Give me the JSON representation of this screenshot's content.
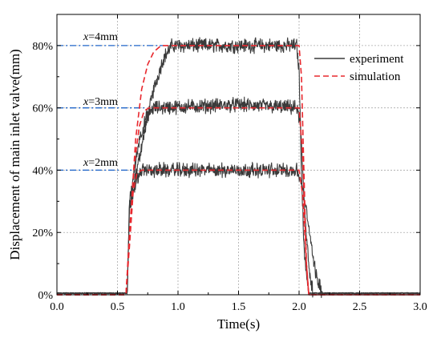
{
  "chart_data": {
    "type": "line",
    "title": "",
    "xlabel": "Time(s)",
    "ylabel": "Displacement of main inlet valve(mm)",
    "xlim": [
      0.0,
      3.0
    ],
    "ylim": [
      0,
      90
    ],
    "x_ticks": [
      0.0,
      0.5,
      1.0,
      1.5,
      2.0,
      2.5,
      3.0
    ],
    "x_tick_labels": [
      "0.0",
      "0.5",
      "1.0",
      "1.5",
      "2.0",
      "2.5",
      "3.0"
    ],
    "y_ticks": [
      0,
      20,
      40,
      60,
      80
    ],
    "y_tick_labels": [
      "0%",
      "20%",
      "40%",
      "60%",
      "80%"
    ],
    "grid": true,
    "legend": {
      "position": "top-right",
      "entries": [
        {
          "label": "experiment",
          "style": "solid",
          "color": "#3a3a3a"
        },
        {
          "label": "simulation",
          "style": "dashed",
          "color": "#e8282e"
        }
      ]
    },
    "annotations": [
      {
        "var": "x",
        "text": "=4mm",
        "y": 80
      },
      {
        "var": "x",
        "text": "=3mm",
        "y": 60
      },
      {
        "var": "x",
        "text": "=2mm",
        "y": 40
      }
    ],
    "reference_lines": {
      "color": "#2166c9",
      "style": "dash-dot",
      "y": [
        80,
        60,
        40
      ],
      "x_end": [
        0.88,
        0.72,
        0.62
      ]
    },
    "series": [
      {
        "name": "experiment",
        "group": "x=4mm",
        "color": "#3a3a3a",
        "x": [
          0.0,
          0.58,
          0.6,
          0.7,
          0.8,
          0.88,
          0.95,
          1.5,
          1.98,
          2.0,
          2.02,
          2.04,
          2.08,
          3.0
        ],
        "y": [
          0,
          0,
          28,
          48,
          66,
          76,
          80,
          80,
          80,
          72,
          40,
          15,
          0,
          0
        ],
        "noise": 1.8
      },
      {
        "name": "experiment",
        "group": "x=3mm",
        "color": "#3a3a3a",
        "x": [
          0.0,
          0.58,
          0.6,
          0.68,
          0.75,
          0.8,
          1.5,
          1.98,
          2.01,
          2.05,
          2.09,
          2.12,
          3.0
        ],
        "y": [
          0,
          0,
          30,
          50,
          58,
          60,
          61,
          60,
          55,
          25,
          5,
          0,
          0
        ],
        "noise": 1.8
      },
      {
        "name": "experiment",
        "group": "x=2mm",
        "color": "#3a3a3a",
        "x": [
          0.0,
          0.58,
          0.6,
          0.65,
          0.7,
          1.5,
          1.98,
          2.02,
          2.08,
          2.14,
          2.2,
          3.0
        ],
        "y": [
          0,
          0,
          28,
          36,
          40,
          40,
          40,
          36,
          22,
          6,
          0,
          0
        ],
        "noise": 1.8
      },
      {
        "name": "simulation",
        "group": "x=4mm",
        "color": "#e8282e",
        "x": [
          0.0,
          0.57,
          0.6,
          0.65,
          0.7,
          0.75,
          0.8,
          0.86,
          0.9,
          2.0,
          2.02,
          2.04,
          2.06,
          2.08,
          3.0
        ],
        "y": [
          0,
          0,
          20,
          50,
          66,
          74,
          78,
          80,
          80,
          80,
          70,
          40,
          10,
          0,
          0
        ]
      },
      {
        "name": "simulation",
        "group": "x=3mm",
        "color": "#e8282e",
        "x": [
          0.0,
          0.57,
          0.6,
          0.64,
          0.68,
          0.72,
          0.76,
          2.0,
          2.03,
          2.06,
          2.08,
          3.0
        ],
        "y": [
          0,
          0,
          18,
          42,
          54,
          59,
          60,
          60,
          45,
          10,
          0,
          0
        ]
      },
      {
        "name": "simulation",
        "group": "x=2mm",
        "color": "#e8282e",
        "x": [
          0.0,
          0.57,
          0.6,
          0.63,
          0.66,
          0.7,
          2.0,
          2.03,
          2.06,
          2.08,
          3.0
        ],
        "y": [
          0,
          0,
          16,
          33,
          39,
          40,
          40,
          32,
          10,
          0,
          0
        ]
      }
    ]
  }
}
